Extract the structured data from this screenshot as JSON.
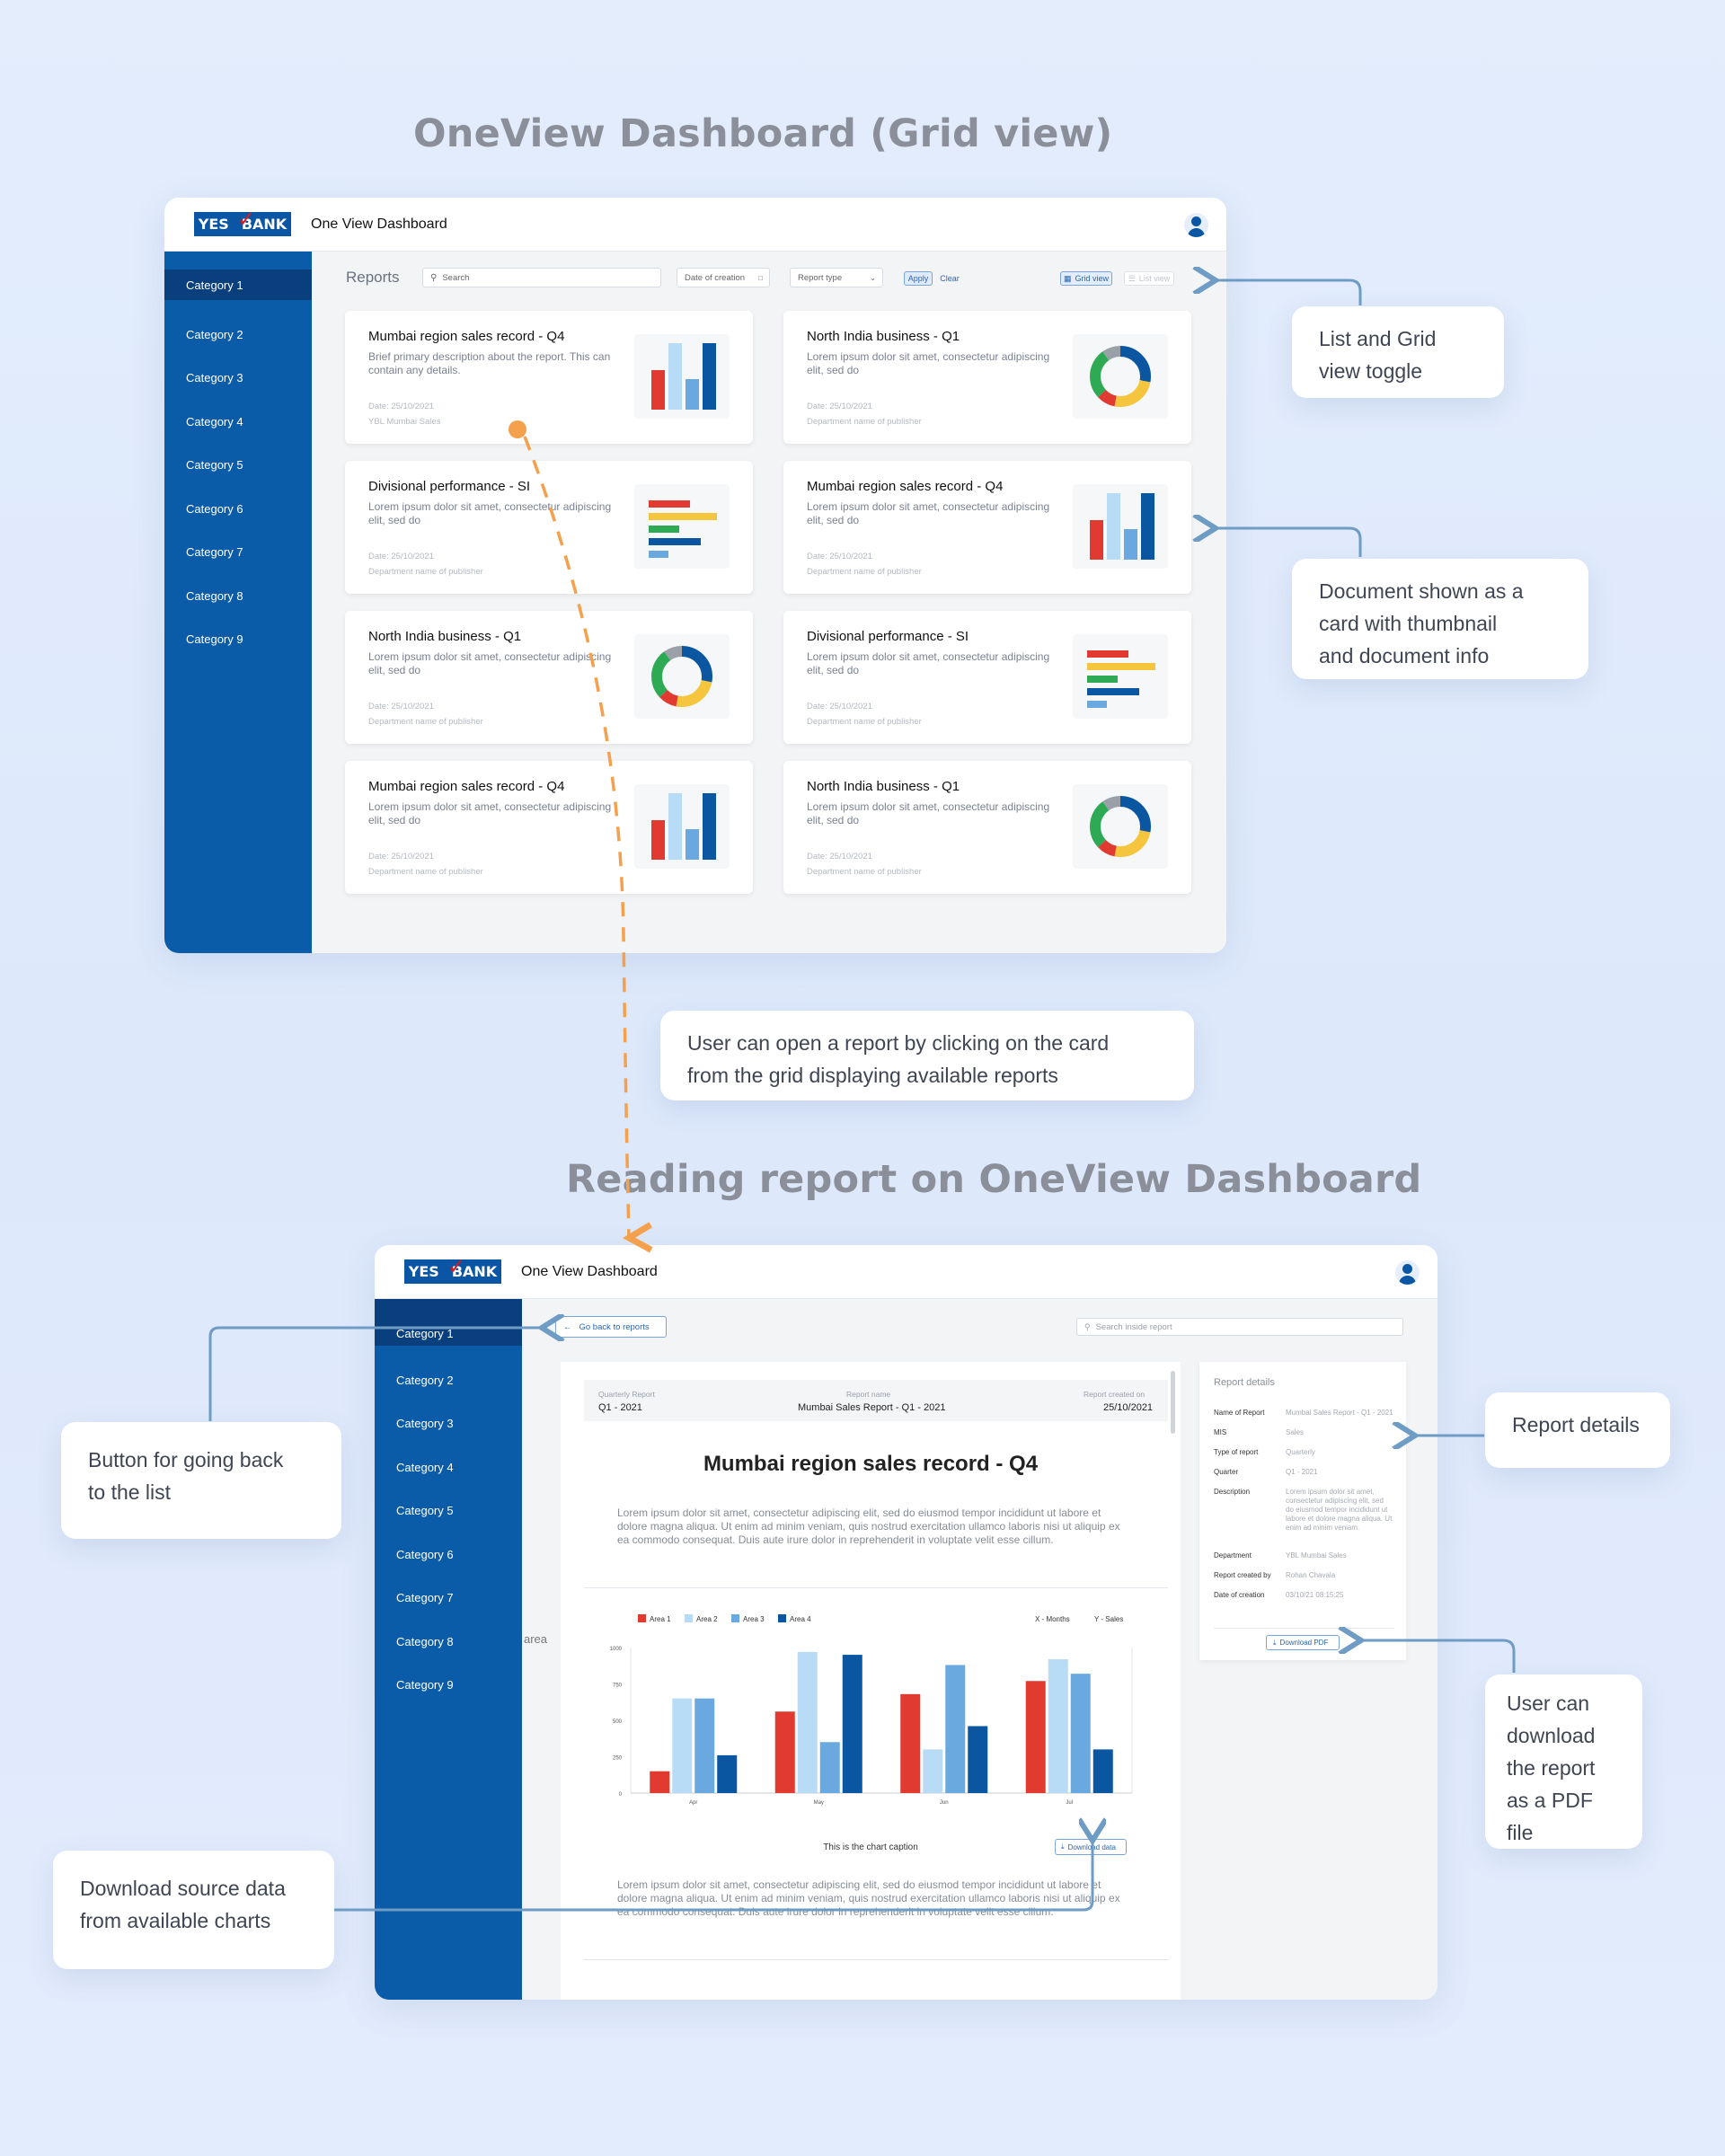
{
  "titles": {
    "grid": "OneView Dashboard (Grid view)",
    "reading": "Reading report on OneView Dashboard"
  },
  "app": {
    "logo_left": "YES",
    "logo_right": "BANK",
    "name": "One View Dashboard",
    "colors": {
      "brand": "#0a5ba8",
      "sidebar_active": "#083f7c",
      "accent_orange": "#f5a04c",
      "connector": "#6e9cc4"
    }
  },
  "sidebar": {
    "items": [
      "Category 1",
      "Category 2",
      "Category 3",
      "Category 4",
      "Category 5",
      "Category 6",
      "Category 7",
      "Category 8",
      "Category 9"
    ]
  },
  "grid_view": {
    "toolbar": {
      "heading": "Reports",
      "search_placeholder": "Search",
      "date_filter": "Date of creation",
      "type_filter": "Report type",
      "apply": "Apply",
      "clear": "Clear",
      "grid_toggle": "Grid view",
      "list_toggle": "List view"
    },
    "cards": [
      {
        "title": "Mumbai region sales record - Q4",
        "desc": "Brief primary description about the report. This can contain any details.",
        "date": "Date: 25/10/2021",
        "dept": "YBL Mumbai Sales",
        "thumb": "bar-chart"
      },
      {
        "title": "North India business - Q1",
        "desc": "Lorem ipsum dolor sit amet, consectetur adipiscing elit, sed do",
        "date": "Date: 25/10/2021",
        "dept": "Department name of publisher",
        "thumb": "donut-chart"
      },
      {
        "title": "Divisional performance - SI",
        "desc": "Lorem ipsum dolor sit amet, consectetur adipiscing elit, sed do",
        "date": "Date: 25/10/2021",
        "dept": "Department name of publisher",
        "thumb": "hbar-chart"
      },
      {
        "title": "Mumbai region sales record - Q4",
        "desc": "Lorem ipsum dolor sit amet, consectetur adipiscing elit, sed do",
        "date": "Date: 25/10/2021",
        "dept": "Department name of publisher",
        "thumb": "bar-chart"
      },
      {
        "title": "North India business - Q1",
        "desc": "Lorem ipsum dolor sit amet, consectetur adipiscing elit, sed do",
        "date": "Date: 25/10/2021",
        "dept": "Department name of publisher",
        "thumb": "donut-chart"
      },
      {
        "title": "Divisional performance - SI",
        "desc": "Lorem ipsum dolor sit amet, consectetur adipiscing elit, sed do",
        "date": "Date: 25/10/2021",
        "dept": "Department name of publisher",
        "thumb": "hbar-chart"
      },
      {
        "title": "Mumbai region sales record - Q4",
        "desc": "Lorem ipsum dolor sit amet, consectetur adipiscing elit, sed do",
        "date": "Date: 25/10/2021",
        "dept": "Department name of publisher",
        "thumb": "bar-chart"
      },
      {
        "title": "North India business - Q1",
        "desc": "Lorem ipsum dolor sit amet, consectetur adipiscing elit, sed do",
        "date": "Date: 25/10/2021",
        "dept": "Department name of publisher",
        "thumb": "donut-chart"
      }
    ]
  },
  "callouts": {
    "toggle": "List and Grid\nview toggle",
    "card": "Document shown as a\ncard with thumbnail\nand document info",
    "open": "User can open a report by clicking on the card\nfrom the grid displaying available reports",
    "back": "Button for going back\nto the list",
    "details": "Report details",
    "pdf": "User can\ndownload\nthe report\nas a PDF\nfile",
    "data": "Download source data\nfrom available charts"
  },
  "reading_view": {
    "back_button": "Go back to reports",
    "search_placeholder": "Search inside report",
    "meta": {
      "q_label": "Quarterly Report",
      "q_value": "Q1 - 2021",
      "n_label": "Report name",
      "n_value": "Mumbai Sales Report - Q1 - 2021",
      "c_label": "Report created on",
      "c_value": "25/10/2021"
    },
    "heading": "Mumbai region sales record - Q4",
    "para1": "Lorem ipsum dolor sit amet, consectetur adipiscing elit, sed do eiusmod tempor incididunt ut labore et dolore magna aliqua. Ut enim ad minim veniam, quis nostrud exercitation ullamco laboris nisi ut aliquip ex ea commodo consequat. Duis aute irure dolor in reprehenderit in voluptate velit esse cillum.",
    "para2": "Lorem ipsum dolor sit amet, consectetur adipiscing elit, sed do eiusmod tempor incididunt ut labore et dolore magna aliqua. Ut enim ad minim veniam, quis nostrud exercitation ullamco laboris nisi ut aliquip ex ea commodo consequat. Duis aute irure dolor in reprehenderit in voluptate velit esse cillum.",
    "chart_caption": "This is the chart caption",
    "download_data": "Download data",
    "overlay_text": "area",
    "details": {
      "heading": "Report details",
      "rows": [
        {
          "label": "Name of Report",
          "value": "Mumbai Sales Report - Q1 - 2021"
        },
        {
          "label": "MIS",
          "value": "Sales"
        },
        {
          "label": "Type of report",
          "value": "Quarterly"
        },
        {
          "label": "Quarter",
          "value": "Q1 - 2021"
        },
        {
          "label": "Description",
          "value": "Lorem ipsum dolor sit amet, consectetur adipiscing elit, sed do eiusmod tempor incididunt ut labore et dolore magna aliqua. Ut enim ad minim veniam."
        },
        {
          "label": "Department",
          "value": "YBL Mumbai Sales"
        },
        {
          "label": "Report created by",
          "value": "Rohan Chavala"
        },
        {
          "label": "Date of creation",
          "value": "03/10/21 08:15:25"
        }
      ],
      "download_pdf": "Download PDF"
    }
  },
  "chart_data": {
    "type": "bar",
    "categories": [
      "Apr",
      "May",
      "Jun",
      "Jul"
    ],
    "series": [
      {
        "name": "Area 1",
        "color": "#e03a31",
        "values": [
          150,
          560,
          680,
          770
        ]
      },
      {
        "name": "Area 2",
        "color": "#b8dcf6",
        "values": [
          650,
          970,
          300,
          920
        ]
      },
      {
        "name": "Area 3",
        "color": "#6aa9e0",
        "values": [
          650,
          350,
          880,
          820
        ]
      },
      {
        "name": "Area 4",
        "color": "#0a56a0",
        "values": [
          260,
          950,
          460,
          300
        ]
      }
    ],
    "xlabel": "X - Months",
    "ylabel": "Y - Sales",
    "yticks": [
      0,
      250,
      500,
      750,
      1000
    ],
    "ylim": [
      0,
      1000
    ],
    "legend": "top-left"
  }
}
